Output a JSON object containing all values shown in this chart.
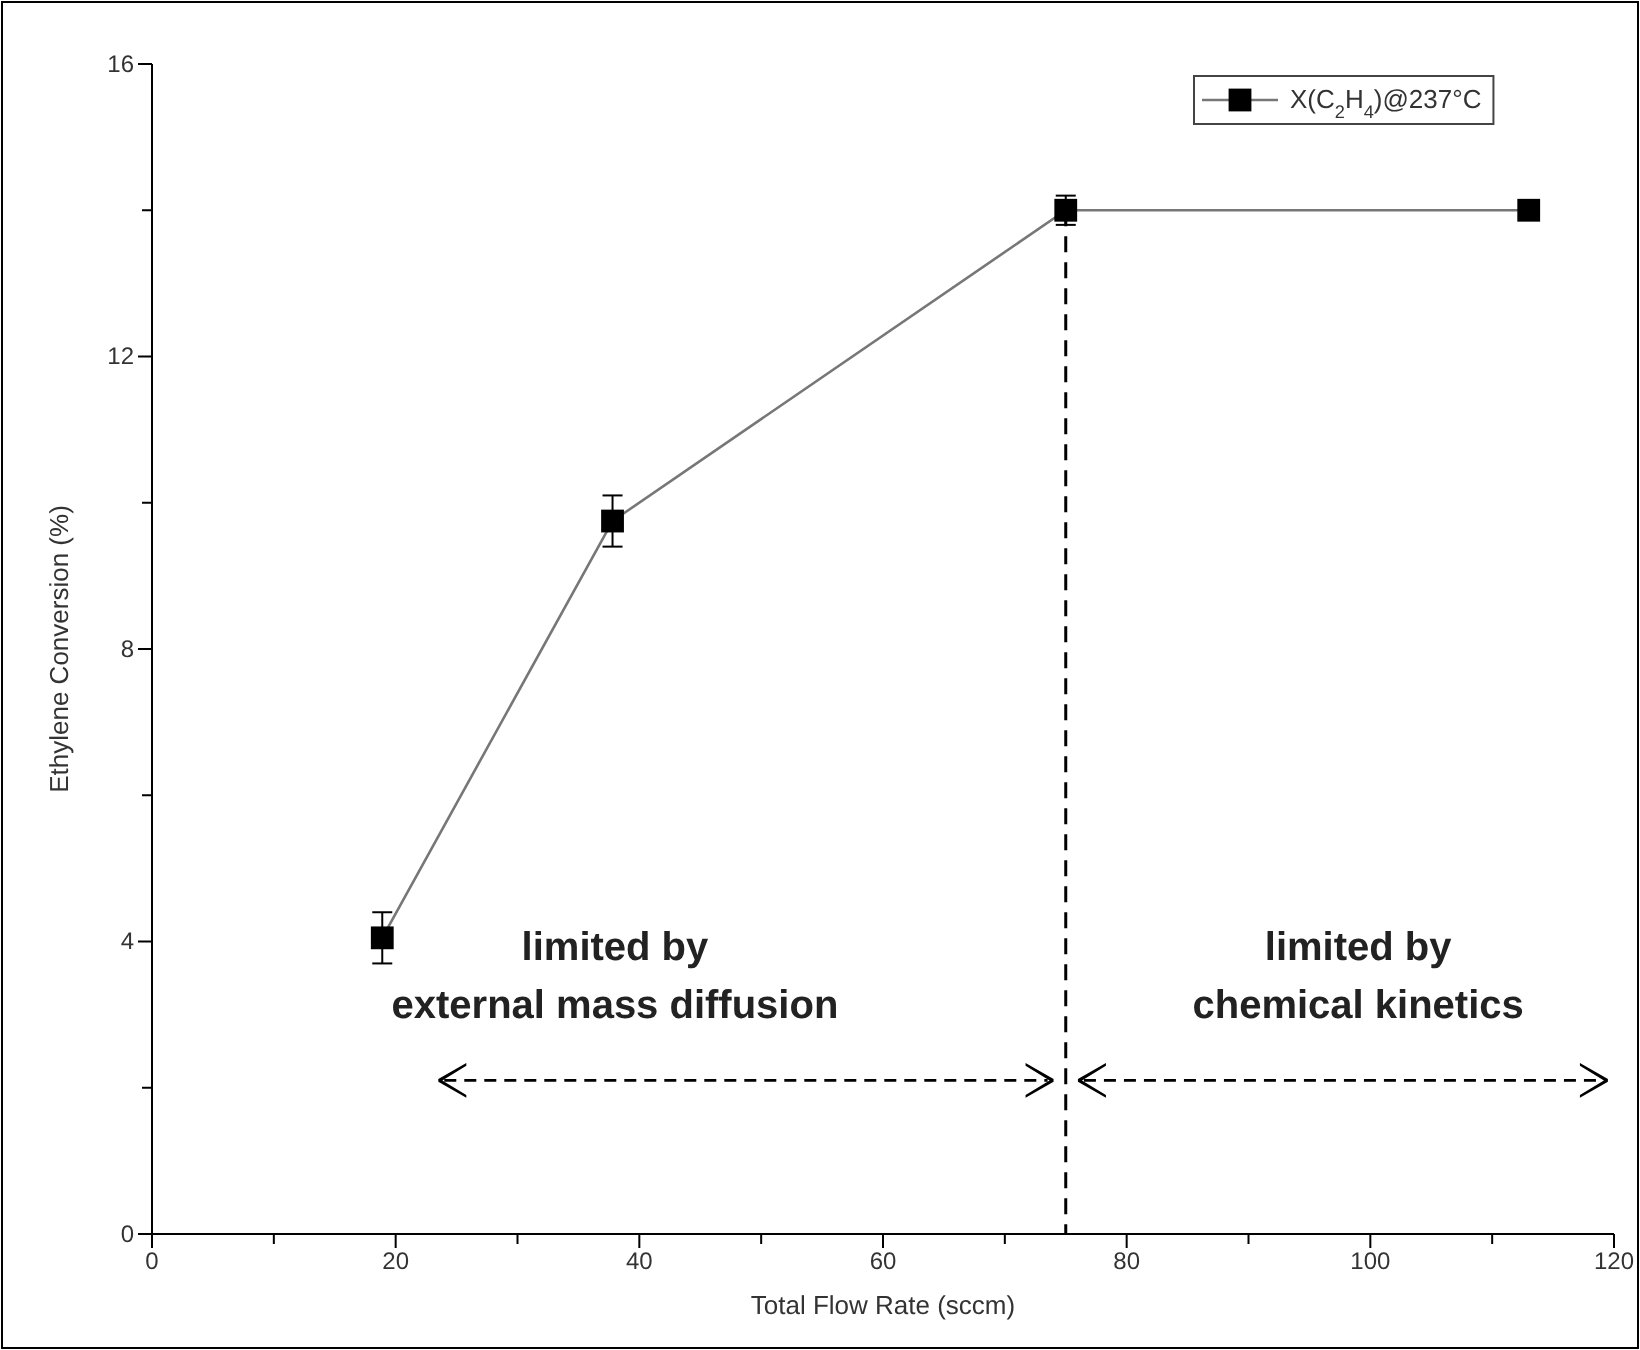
{
  "chart_data": {
    "type": "line",
    "xlabel": "Total Flow Rate (sccm)",
    "ylabel": "Ethylene Conversion (%)",
    "x": [
      18.9,
      37.8,
      75,
      113
    ],
    "series": [
      {
        "name": "X(C$_{2}$H$_{4}$)@237°C",
        "color": "#000000",
        "values": [
          4.05,
          9.75,
          14.0,
          14.0
        ],
        "errors": [
          0.35,
          0.35,
          0.2,
          0.1
        ]
      }
    ],
    "xlim": [
      0,
      120
    ],
    "xticks": [
      0,
      {
        "value": 10,
        "label": null
      },
      20,
      {
        "value": 30,
        "label": null
      },
      40,
      {
        "value": 50,
        "label": null
      },
      60,
      {
        "value": 70,
        "label": null
      },
      80,
      {
        "value": 90,
        "label": null
      },
      100,
      {
        "value": 110,
        "label": null
      },
      120
    ],
    "ylim": [
      0,
      16
    ],
    "yticks": [
      0,
      {
        "value": 2,
        "label": null
      },
      4,
      {
        "value": 6,
        "label": null
      },
      8,
      {
        "value": 10,
        "label": null
      },
      12,
      {
        "value": 14,
        "label": null
      },
      16
    ],
    "ref_lines": [
      {
        "axis": "x",
        "value": 75,
        "line_style": "dashed",
        "color": "#000000"
      }
    ],
    "annotations": [
      "limited by\nexternal mass diffusion",
      "limited by\nchemical kinetics"
    ],
    "marker": "square",
    "line_style": "solid",
    "legend": "top right",
    "grid": false
  }
}
